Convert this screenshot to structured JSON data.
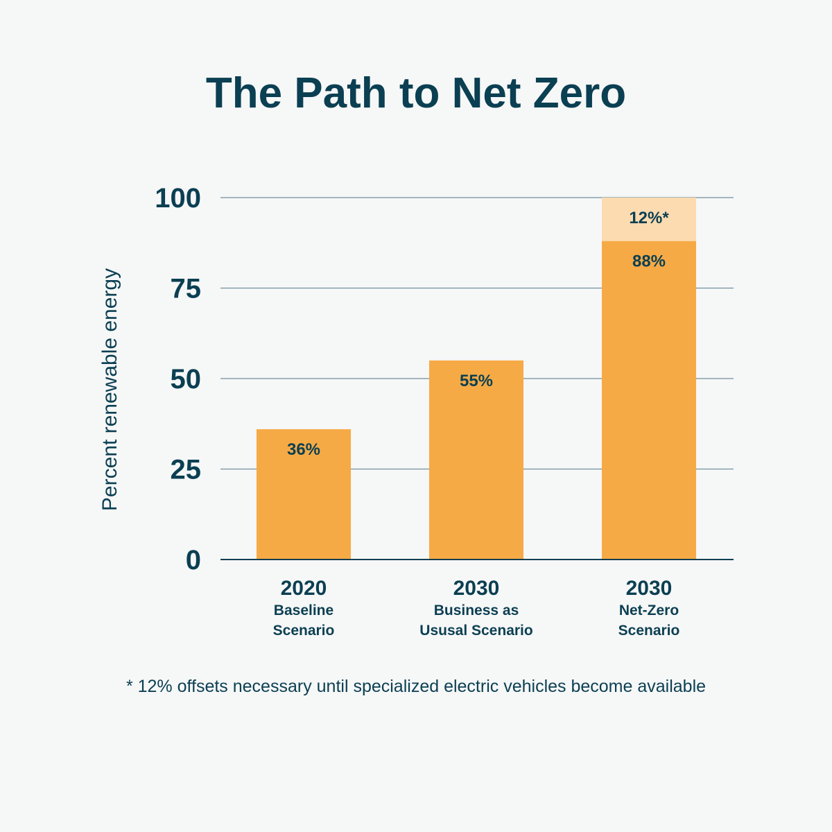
{
  "colors": {
    "background": "#f6f7f7",
    "text": "#0b3f52",
    "bar": "#f6aa45",
    "offset": "#fddbb0",
    "grid": "#6f8f9c"
  },
  "chart_data": {
    "type": "bar",
    "title": "The Path to Net Zero",
    "ylabel": "Percent renewable energy",
    "xlabel": "",
    "ylim": [
      0,
      100
    ],
    "yticks": [
      "0",
      "25",
      "50",
      "75",
      "100"
    ],
    "grid": true,
    "stacked": true,
    "categories": [
      {
        "year": "2020",
        "lines": [
          "Baseline",
          "Scenario"
        ]
      },
      {
        "year": "2030",
        "lines": [
          "Business as",
          "Ususal Scenario"
        ]
      },
      {
        "year": "2030",
        "lines": [
          "Net-Zero",
          "Scenario"
        ]
      }
    ],
    "series": [
      {
        "values": [
          36,
          55,
          88
        ],
        "labels": [
          "36%",
          "55%",
          "88%"
        ],
        "color": "#f6aa45"
      },
      {
        "values": [
          0,
          0,
          12
        ],
        "labels": [
          "",
          "",
          "12%*"
        ],
        "color": "#fddbb0"
      }
    ],
    "footnote": "* 12% offsets necessary until specialized electric vehicles become available"
  }
}
